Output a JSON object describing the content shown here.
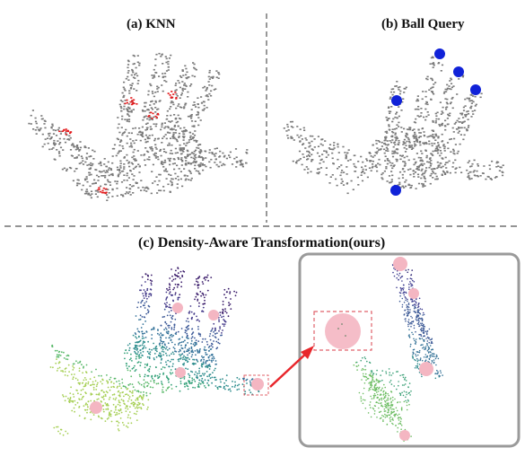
{
  "figure": {
    "panel_a": {
      "caption": "(a) KNN"
    },
    "panel_b": {
      "caption": "(b) Ball Query"
    },
    "panel_c": {
      "caption": "(c) Density-Aware Transformation(ours)"
    }
  },
  "colors": {
    "points": "#7a7a7a",
    "knn_highlight": "#e31a1c",
    "ball_query": "#1022d8",
    "density_ball": "#f4b6c2",
    "zoom_frame": "#9a9a9a",
    "arrow": "#e8262b",
    "dashed_box": "#e0626a"
  }
}
